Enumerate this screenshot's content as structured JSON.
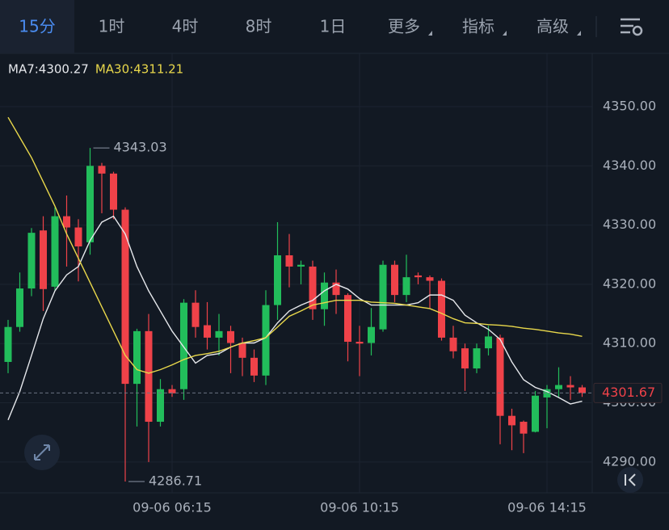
{
  "toolbar": {
    "tabs": [
      "15分",
      "1时",
      "4时",
      "8时",
      "1日",
      "更多",
      "指标",
      "高级"
    ],
    "active": 0
  },
  "chart_data": {
    "type": "candlestick",
    "categories": [
      null,
      null,
      null,
      null,
      null,
      null,
      null,
      null,
      null,
      null,
      null,
      null,
      null,
      null,
      "09-06 06:15",
      null,
      null,
      null,
      null,
      null,
      null,
      null,
      null,
      null,
      null,
      null,
      null,
      null,
      null,
      null,
      "09-06 10:15",
      null,
      null,
      null,
      null,
      null,
      null,
      null,
      null,
      null,
      null,
      null,
      null,
      null,
      null,
      null,
      "09-06 14:15",
      null,
      null,
      null
    ],
    "open": [
      4306.9,
      4312.8,
      4319.3,
      4329.1,
      4319.6,
      4331.5,
      4329.6,
      4327.1,
      4340.0,
      4338.7,
      4332.6,
      4303.2,
      4312.1,
      4296.8,
      4302.3,
      4302.3,
      4316.9,
      4313.1,
      4311.0,
      4312.1,
      4310.1,
      4307.6,
      4304.6,
      4316.5,
      4324.9,
      4323.0,
      4323.0,
      4315.8,
      4320.3,
      4318.2,
      4310.3,
      4310.1,
      4312.4,
      4323.3,
      4318.2,
      4321.5,
      4321.2,
      4320.6,
      4311.0,
      4309.2,
      4305.8,
      4309.2,
      4311.0,
      4297.8,
      4296.8,
      4295.1,
      4300.9,
      4302.3,
      4303.0,
      4302.6
    ],
    "high": [
      4314,
      4322,
      4329.5,
      4331.5,
      4333,
      4335,
      4331,
      4343.03,
      4340.5,
      4339,
      4333,
      4312.5,
      4315,
      4304,
      4303,
      4317.5,
      4319,
      4317,
      4315,
      4313,
      4311,
      4309,
      4319,
      4330.5,
      4328.5,
      4324,
      4324,
      4322,
      4322.5,
      4318.5,
      4313,
      4316,
      4324,
      4324,
      4325,
      4322,
      4321.5,
      4321,
      4313,
      4310,
      4310,
      4313,
      4311.5,
      4299,
      4297,
      4302,
      4303,
      4306,
      4304.5,
      4303
    ],
    "low": [
      4305,
      4312,
      4318,
      4315.5,
      4319,
      4323,
      4320.5,
      4325,
      4332,
      4331,
      4286.71,
      4296,
      4290,
      4296,
      4301,
      4300.5,
      4311,
      4309,
      4308,
      4305,
      4304.5,
      4303.5,
      4303,
      4314,
      4319.5,
      4320,
      4314,
      4313,
      4315,
      4307,
      4304.5,
      4308,
      4312,
      4317,
      4317,
      4320,
      4316,
      4310.5,
      4307.5,
      4302,
      4305,
      4308,
      4293,
      4292,
      4291.5,
      4295,
      4295.7,
      4301,
      4300.5,
      4301
    ],
    "close": [
      4312.8,
      4319.3,
      4328.7,
      4319.2,
      4331.5,
      4329.6,
      4326.4,
      4340.0,
      4338.7,
      4332.6,
      4303.2,
      4312.1,
      4296.8,
      4302.3,
      4301.6,
      4316.9,
      4312.8,
      4311.0,
      4312.1,
      4310.1,
      4307.6,
      4304.6,
      4316.5,
      4324.9,
      4323.0,
      4323.3,
      4315.8,
      4320.3,
      4318.2,
      4310.3,
      4310.0,
      4312.8,
      4323.3,
      4318.2,
      4321.2,
      4321.2,
      4320.6,
      4311.0,
      4308.7,
      4305.8,
      4309.2,
      4311.2,
      4297.8,
      4296.2,
      4294.8,
      4301.2,
      4302.3,
      4303.0,
      4302.6,
      4301.67
    ],
    "up_color": "#22bd5b",
    "down_color": "#ef4249",
    "series": [
      {
        "name": "MA7:4300.27",
        "color": "#e6e8ec",
        "values": [
          4297.1,
          4301.9,
          4308,
          4314.2,
          4318.9,
          4321.6,
          4323,
          4327.4,
          4330.5,
          4331.5,
          4328.5,
          4323,
          4318.9,
          4315.5,
          4312.1,
          4309.4,
          4306.7,
          4308,
          4308.3,
          4309.4,
          4310.1,
          4310.1,
          4311,
          4313.5,
          4315.5,
          4316.5,
          4317.3,
          4318.9,
          4320,
          4319.2,
          4317.6,
          4316.5,
          4316.5,
          4316.5,
          4316.5,
          4316.9,
          4318.2,
          4318.2,
          4317.3,
          4314.8,
          4313.5,
          4312.4,
          4310.7,
          4306.9,
          4303.9,
          4302.6,
          4301.9,
          4300.9,
          4299.8,
          4300.27
        ]
      },
      {
        "name": "MA30:4311.21",
        "color": "#e9d84b",
        "values": [
          4348.2,
          4344.8,
          4341.4,
          4337.3,
          4333.2,
          4328.5,
          4324.4,
          4320.3,
          4316.2,
          4312.1,
          4308,
          4305.6,
          4305,
          4305.6,
          4306.4,
          4307.3,
          4308,
          4308.3,
          4308.7,
          4309.4,
          4310.1,
          4310.5,
          4311,
          4312.8,
          4314.6,
          4315.5,
          4316.5,
          4316.9,
          4317.3,
          4317.3,
          4317.3,
          4317,
          4316.9,
          4316.8,
          4316.5,
          4316.2,
          4315.9,
          4315.1,
          4314.2,
          4313.5,
          4313.4,
          4313.2,
          4313.1,
          4312.9,
          4312.6,
          4312.4,
          4312.1,
          4311.8,
          4311.6,
          4311.21
        ]
      }
    ],
    "ylim": [
      4284.8,
      4359.0
    ],
    "yticks": [
      {
        "value": 4290,
        "label": "4290.00"
      },
      {
        "value": 4300,
        "label": "4300.00"
      },
      {
        "value": 4310,
        "label": "4310.00"
      },
      {
        "value": 4320,
        "label": "4320.00"
      },
      {
        "value": 4330,
        "label": "4330.00"
      },
      {
        "value": 4340,
        "label": "4340.00"
      },
      {
        "value": 4350,
        "label": "4350.00"
      }
    ],
    "grid": true
  }
}
